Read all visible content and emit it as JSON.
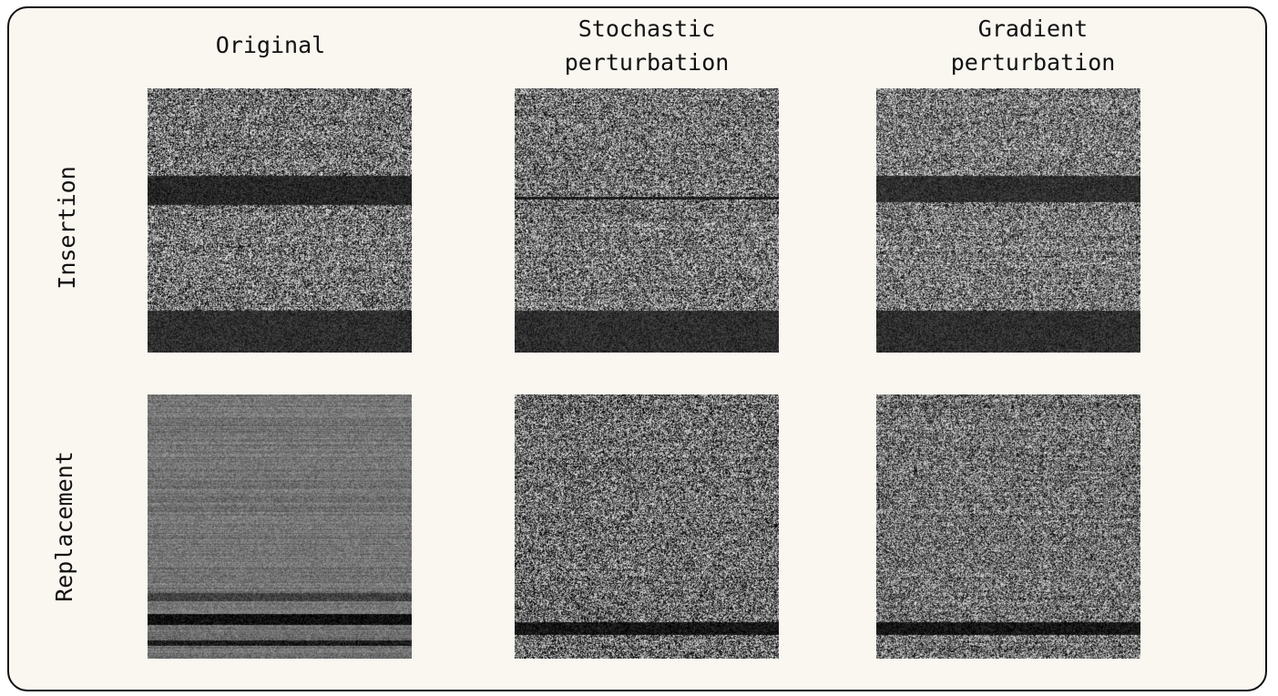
{
  "columns": [
    {
      "label": "Original"
    },
    {
      "label": "Stochastic\nperturbation"
    },
    {
      "label": "Gradient\nperturbation"
    }
  ],
  "rows": [
    {
      "label": "Insertion"
    },
    {
      "label": "Replacement"
    }
  ],
  "panels": [
    {
      "row": 0,
      "col": 0,
      "description_icon": "noise-image",
      "dark_bands": [
        [
          0.33,
          0.44,
          0.15
        ],
        [
          0.84,
          1.0,
          0.18
        ]
      ],
      "contrast": 1.0,
      "base": 0.45
    },
    {
      "row": 0,
      "col": 1,
      "description_icon": "noise-image",
      "dark_bands": [
        [
          0.41,
          0.42,
          0.1
        ],
        [
          0.84,
          1.0,
          0.18
        ]
      ],
      "contrast": 1.0,
      "base": 0.45
    },
    {
      "row": 0,
      "col": 2,
      "description_icon": "noise-image",
      "dark_bands": [
        [
          0.33,
          0.43,
          0.18
        ],
        [
          0.84,
          1.0,
          0.18
        ]
      ],
      "contrast": 0.95,
      "base": 0.47
    },
    {
      "row": 1,
      "col": 0,
      "description_icon": "noise-image",
      "dark_bands": [
        [
          0.75,
          0.78,
          0.25
        ],
        [
          0.83,
          0.87,
          0.05
        ],
        [
          0.93,
          0.95,
          0.1
        ]
      ],
      "contrast": 0.25,
      "base": 0.45
    },
    {
      "row": 1,
      "col": 1,
      "description_icon": "noise-image",
      "dark_bands": [
        [
          0.86,
          0.91,
          0.08
        ]
      ],
      "contrast": 1.0,
      "base": 0.42
    },
    {
      "row": 1,
      "col": 2,
      "description_icon": "noise-image",
      "dark_bands": [
        [
          0.86,
          0.91,
          0.08
        ]
      ],
      "contrast": 0.9,
      "base": 0.44
    }
  ]
}
